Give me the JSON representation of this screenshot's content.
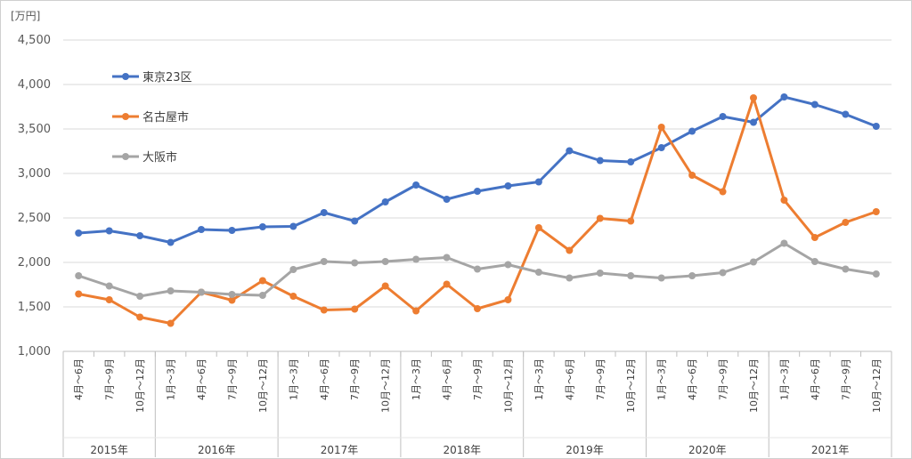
{
  "chart_data": {
    "type": "line",
    "unit_label": "[万円]",
    "ylim": [
      1000,
      4500
    ],
    "y_ticks": [
      "1,000",
      "1,500",
      "2,000",
      "2,500",
      "3,000",
      "3,500",
      "4,000",
      "4,500"
    ],
    "y_tick_values": [
      1000,
      1500,
      2000,
      2500,
      3000,
      3500,
      4000,
      4500
    ],
    "categories": [
      "4月～6月",
      "7月～9月",
      "10月～12月",
      "1月～3月",
      "4月～6月",
      "7月～9月",
      "10月～12月",
      "1月～3月",
      "4月～6月",
      "7月～9月",
      "10月～12月",
      "1月～3月",
      "4月～6月",
      "7月～9月",
      "10月～12月",
      "1月～3月",
      "4月～6月",
      "7月～9月",
      "10月～12月",
      "1月～3月",
      "4月～6月",
      "7月～9月",
      "10月～12月",
      "1月～3月",
      "4月～6月",
      "7月～9月",
      "10月～12月"
    ],
    "years": [
      {
        "label": "2015年",
        "count": 3
      },
      {
        "label": "2016年",
        "count": 4
      },
      {
        "label": "2017年",
        "count": 4
      },
      {
        "label": "2018年",
        "count": 4
      },
      {
        "label": "2019年",
        "count": 4
      },
      {
        "label": "2020年",
        "count": 4
      },
      {
        "label": "2021年",
        "count": 4
      }
    ],
    "grid": true,
    "legend_position": "top-left",
    "series": [
      {
        "name": "東京23区",
        "color": "#4472c4",
        "values": [
          2330,
          2355,
          2300,
          2225,
          2370,
          2360,
          2400,
          2405,
          2560,
          2465,
          2680,
          2870,
          2710,
          2800,
          2860,
          2905,
          3255,
          3145,
          3130,
          3290,
          3475,
          3640,
          3575,
          3860,
          3775,
          3665,
          3530
        ]
      },
      {
        "name": "名古屋市",
        "color": "#ed7d31",
        "values": [
          1645,
          1580,
          1385,
          1315,
          1665,
          1575,
          1795,
          1620,
          1465,
          1475,
          1735,
          1455,
          1755,
          1480,
          1580,
          2390,
          2135,
          2495,
          2465,
          3520,
          2980,
          2795,
          3850,
          2700,
          2280,
          2450,
          2570
        ]
      },
      {
        "name": "大阪市",
        "color": "#a5a5a5",
        "values": [
          1850,
          1735,
          1620,
          1680,
          1665,
          1640,
          1630,
          1920,
          2010,
          1995,
          2010,
          2035,
          2055,
          1925,
          1975,
          1890,
          1825,
          1880,
          1850,
          1825,
          1850,
          1885,
          2005,
          2215,
          2010,
          1925,
          1870
        ]
      }
    ]
  }
}
